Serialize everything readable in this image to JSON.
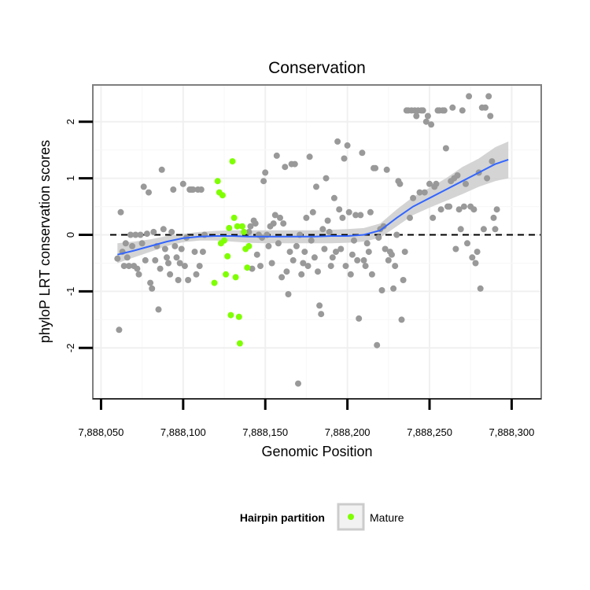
{
  "chart_data": {
    "type": "scatter",
    "title": "Conservation",
    "xlabel": "Genomic Position",
    "ylabel": "phyloP LRT conservation scores",
    "xlim": [
      7888045,
      7888318
    ],
    "ylim": [
      -2.9,
      2.65
    ],
    "x_ticks": [
      7888050,
      7888100,
      7888150,
      7888200,
      7888250,
      7888300
    ],
    "x_tick_labels": [
      "7,888,050",
      "7,888,100",
      "7,888,150",
      "7,888,200",
      "7,888,250",
      "7,888,300"
    ],
    "y_ticks": [
      -2,
      -1,
      0,
      1,
      2
    ],
    "y_tick_labels": [
      "-2",
      "-1",
      "0",
      "1",
      "2"
    ],
    "grid": true,
    "reference_line": {
      "y": 0,
      "style": "dashed"
    },
    "legend": {
      "title": "Hairpin partition",
      "position": "bottom",
      "entries": [
        {
          "label": "Mature",
          "color": "#7fff00"
        }
      ]
    },
    "colors": {
      "other": "#999999",
      "mature": "#7fff00",
      "smooth": "#3366ff",
      "ribbon": "#cccccc"
    },
    "series": [
      {
        "role": "other",
        "points": [
          [
            7888060,
            -0.42
          ],
          [
            7888061,
            -1.68
          ],
          [
            7888062,
            0.4
          ],
          [
            7888063,
            -0.3
          ],
          [
            7888064,
            -0.55
          ],
          [
            7888065,
            -0.15
          ],
          [
            7888066,
            -0.4
          ],
          [
            7888067,
            -0.55
          ],
          [
            7888068,
            0.0
          ],
          [
            7888069,
            -0.2
          ],
          [
            7888070,
            -0.55
          ],
          [
            7888071,
            0.0
          ],
          [
            7888072,
            -0.6
          ],
          [
            7888073,
            -0.7
          ],
          [
            7888074,
            0.0
          ],
          [
            7888075,
            -0.15
          ],
          [
            7888076,
            0.85
          ],
          [
            7888077,
            -0.45
          ],
          [
            7888078,
            0.02
          ],
          [
            7888079,
            0.75
          ],
          [
            7888080,
            -0.85
          ],
          [
            7888081,
            -0.95
          ],
          [
            7888082,
            0.05
          ],
          [
            7888083,
            -0.45
          ],
          [
            7888084,
            -0.2
          ],
          [
            7888085,
            -1.32
          ],
          [
            7888086,
            -0.6
          ],
          [
            7888087,
            1.15
          ],
          [
            7888088,
            0.1
          ],
          [
            7888089,
            -0.25
          ],
          [
            7888090,
            -0.4
          ],
          [
            7888091,
            -0.5
          ],
          [
            7888092,
            -0.7
          ],
          [
            7888093,
            0.05
          ],
          [
            7888094,
            0.8
          ],
          [
            7888095,
            -0.2
          ],
          [
            7888096,
            -0.4
          ],
          [
            7888097,
            -0.8
          ],
          [
            7888098,
            -0.5
          ],
          [
            7888099,
            -0.25
          ],
          [
            7888100,
            0.9
          ],
          [
            7888101,
            -0.55
          ],
          [
            7888102,
            -0.05
          ],
          [
            7888103,
            -0.8
          ],
          [
            7888104,
            0.8
          ],
          [
            7888105,
            0.8
          ],
          [
            7888106,
            0.8
          ],
          [
            7888107,
            -0.3
          ],
          [
            7888108,
            -0.7
          ],
          [
            7888109,
            0.8
          ],
          [
            7888110,
            -0.55
          ],
          [
            7888111,
            0.8
          ],
          [
            7888112,
            -0.3
          ],
          [
            7888113,
            0.0
          ],
          [
            7888140,
            0.05
          ],
          [
            7888141,
            0.15
          ],
          [
            7888142,
            -0.6
          ],
          [
            7888143,
            0.25
          ],
          [
            7888144,
            0.2
          ],
          [
            7888145,
            -0.35
          ],
          [
            7888146,
            0.0
          ],
          [
            7888147,
            -0.55
          ],
          [
            7888148,
            -0.05
          ],
          [
            7888149,
            0.95
          ],
          [
            7888150,
            1.1
          ],
          [
            7888151,
            0.0
          ],
          [
            7888152,
            -0.2
          ],
          [
            7888153,
            0.15
          ],
          [
            7888154,
            -0.5
          ],
          [
            7888155,
            0.2
          ],
          [
            7888156,
            0.35
          ],
          [
            7888157,
            1.4
          ],
          [
            7888158,
            -0.15
          ],
          [
            7888159,
            0.3
          ],
          [
            7888160,
            -0.75
          ],
          [
            7888161,
            0.2
          ],
          [
            7888162,
            1.2
          ],
          [
            7888163,
            -0.65
          ],
          [
            7888164,
            -1.05
          ],
          [
            7888165,
            -0.3
          ],
          [
            7888166,
            1.25
          ],
          [
            7888167,
            -0.45
          ],
          [
            7888168,
            1.25
          ],
          [
            7888169,
            -0.2
          ],
          [
            7888170,
            -2.63
          ],
          [
            7888171,
            0.0
          ],
          [
            7888172,
            -0.7
          ],
          [
            7888173,
            -0.5
          ],
          [
            7888174,
            -0.3
          ],
          [
            7888175,
            0.3
          ],
          [
            7888176,
            -0.55
          ],
          [
            7888177,
            1.38
          ],
          [
            7888178,
            -0.1
          ],
          [
            7888179,
            0.4
          ],
          [
            7888180,
            -0.4
          ],
          [
            7888181,
            0.85
          ],
          [
            7888182,
            -0.65
          ],
          [
            7888183,
            -1.25
          ],
          [
            7888184,
            -1.4
          ],
          [
            7888185,
            0.1
          ],
          [
            7888186,
            -0.25
          ],
          [
            7888187,
            1.0
          ],
          [
            7888188,
            0.25
          ],
          [
            7888189,
            0.05
          ],
          [
            7888190,
            -0.55
          ],
          [
            7888191,
            -0.4
          ],
          [
            7888192,
            0.65
          ],
          [
            7888193,
            -0.3
          ],
          [
            7888194,
            1.65
          ],
          [
            7888195,
            0.45
          ],
          [
            7888196,
            -0.25
          ],
          [
            7888197,
            0.3
          ],
          [
            7888198,
            1.35
          ],
          [
            7888199,
            -0.55
          ],
          [
            7888200,
            1.58
          ],
          [
            7888201,
            0.4
          ],
          [
            7888202,
            -0.7
          ],
          [
            7888203,
            -0.35
          ],
          [
            7888204,
            -0.1
          ],
          [
            7888205,
            0.35
          ],
          [
            7888206,
            -0.45
          ],
          [
            7888207,
            -1.48
          ],
          [
            7888208,
            0.35
          ],
          [
            7888209,
            1.45
          ],
          [
            7888210,
            -0.45
          ],
          [
            7888211,
            -0.55
          ],
          [
            7888212,
            -0.15
          ],
          [
            7888213,
            -0.3
          ],
          [
            7888214,
            0.4
          ],
          [
            7888215,
            -0.7
          ],
          [
            7888216,
            1.18
          ],
          [
            7888217,
            1.18
          ],
          [
            7888218,
            -1.95
          ],
          [
            7888219,
            -0.05
          ],
          [
            7888220,
            0.1
          ],
          [
            7888221,
            -0.98
          ],
          [
            7888222,
            0.15
          ],
          [
            7888223,
            -0.25
          ],
          [
            7888224,
            1.15
          ],
          [
            7888225,
            -0.45
          ],
          [
            7888226,
            -0.3
          ],
          [
            7888227,
            -0.35
          ],
          [
            7888228,
            -0.95
          ],
          [
            7888229,
            -0.55
          ],
          [
            7888230,
            0.0
          ],
          [
            7888231,
            0.95
          ],
          [
            7888232,
            0.9
          ],
          [
            7888233,
            -1.5
          ],
          [
            7888234,
            -0.8
          ],
          [
            7888235,
            -0.3
          ],
          [
            7888236,
            2.2
          ],
          [
            7888237,
            2.2
          ],
          [
            7888238,
            0.3
          ],
          [
            7888239,
            2.2
          ],
          [
            7888240,
            0.65
          ],
          [
            7888241,
            2.2
          ],
          [
            7888242,
            2.1
          ],
          [
            7888243,
            2.2
          ],
          [
            7888244,
            0.75
          ],
          [
            7888245,
            2.2
          ],
          [
            7888246,
            2.2
          ],
          [
            7888247,
            0.75
          ],
          [
            7888248,
            2.0
          ],
          [
            7888249,
            2.1
          ],
          [
            7888250,
            0.9
          ],
          [
            7888251,
            1.95
          ],
          [
            7888252,
            0.3
          ],
          [
            7888253,
            0.85
          ],
          [
            7888254,
            0.9
          ],
          [
            7888255,
            2.2
          ],
          [
            7888256,
            2.2
          ],
          [
            7888257,
            0.45
          ],
          [
            7888258,
            2.2
          ],
          [
            7888259,
            2.2
          ],
          [
            7888260,
            1.53
          ],
          [
            7888261,
            0.5
          ],
          [
            7888262,
            0.5
          ],
          [
            7888263,
            0.95
          ],
          [
            7888264,
            2.25
          ],
          [
            7888265,
            1.0
          ],
          [
            7888266,
            -0.25
          ],
          [
            7888267,
            1.05
          ],
          [
            7888268,
            0.45
          ],
          [
            7888269,
            0.1
          ],
          [
            7888270,
            2.2
          ],
          [
            7888271,
            0.5
          ],
          [
            7888272,
            0.9
          ],
          [
            7888273,
            -0.15
          ],
          [
            7888274,
            2.45
          ],
          [
            7888275,
            0.5
          ],
          [
            7888276,
            -0.4
          ],
          [
            7888277,
            0.45
          ],
          [
            7888278,
            -0.5
          ],
          [
            7888279,
            -0.3
          ],
          [
            7888280,
            1.1
          ],
          [
            7888281,
            -0.95
          ],
          [
            7888282,
            2.25
          ],
          [
            7888283,
            0.1
          ],
          [
            7888284,
            2.25
          ],
          [
            7888285,
            1.0
          ],
          [
            7888286,
            2.45
          ],
          [
            7888287,
            2.1
          ],
          [
            7888288,
            1.3
          ],
          [
            7888289,
            0.3
          ],
          [
            7888290,
            0.1
          ],
          [
            7888291,
            0.45
          ]
        ]
      },
      {
        "role": "mature",
        "name": "Mature",
        "points": [
          [
            7888119,
            -0.85
          ],
          [
            7888121,
            0.95
          ],
          [
            7888122,
            0.75
          ],
          [
            7888123,
            -0.15
          ],
          [
            7888124,
            0.7
          ],
          [
            7888125,
            -0.1
          ],
          [
            7888126,
            -0.7
          ],
          [
            7888127,
            -0.38
          ],
          [
            7888128,
            0.12
          ],
          [
            7888129,
            -1.42
          ],
          [
            7888130,
            1.3
          ],
          [
            7888131,
            0.3
          ],
          [
            7888132,
            -0.75
          ],
          [
            7888133,
            0.15
          ],
          [
            7888134,
            -1.45
          ],
          [
            7888134.5,
            -1.92
          ],
          [
            7888136,
            0.15
          ],
          [
            7888137,
            0.05
          ],
          [
            7888138,
            -0.25
          ],
          [
            7888139,
            -0.58
          ],
          [
            7888140,
            -0.2
          ]
        ]
      }
    ],
    "smooth_line": {
      "x": [
        7888060,
        7888070,
        7888080,
        7888090,
        7888100,
        7888110,
        7888120,
        7888130,
        7888140,
        7888150,
        7888160,
        7888170,
        7888180,
        7888190,
        7888200,
        7888210,
        7888220,
        7888230,
        7888240,
        7888250,
        7888260,
        7888270,
        7888280,
        7888290,
        7888298
      ],
      "y": [
        -0.35,
        -0.28,
        -0.2,
        -0.12,
        -0.06,
        -0.03,
        -0.02,
        -0.02,
        -0.03,
        -0.03,
        -0.03,
        -0.03,
        -0.03,
        -0.02,
        -0.02,
        0.0,
        0.08,
        0.3,
        0.5,
        0.65,
        0.8,
        0.95,
        1.1,
        1.25,
        1.33
      ],
      "lower": [
        -0.5,
        -0.4,
        -0.3,
        -0.2,
        -0.13,
        -0.1,
        -0.1,
        -0.12,
        -0.14,
        -0.15,
        -0.15,
        -0.15,
        -0.15,
        -0.15,
        -0.14,
        -0.12,
        -0.05,
        0.15,
        0.35,
        0.48,
        0.6,
        0.72,
        0.85,
        0.95,
        1.0
      ],
      "upper": [
        -0.15,
        -0.12,
        -0.08,
        -0.02,
        0.02,
        0.05,
        0.07,
        0.08,
        0.08,
        0.08,
        0.08,
        0.08,
        0.08,
        0.09,
        0.1,
        0.12,
        0.2,
        0.45,
        0.67,
        0.83,
        1.0,
        1.2,
        1.35,
        1.55,
        1.65
      ]
    }
  }
}
